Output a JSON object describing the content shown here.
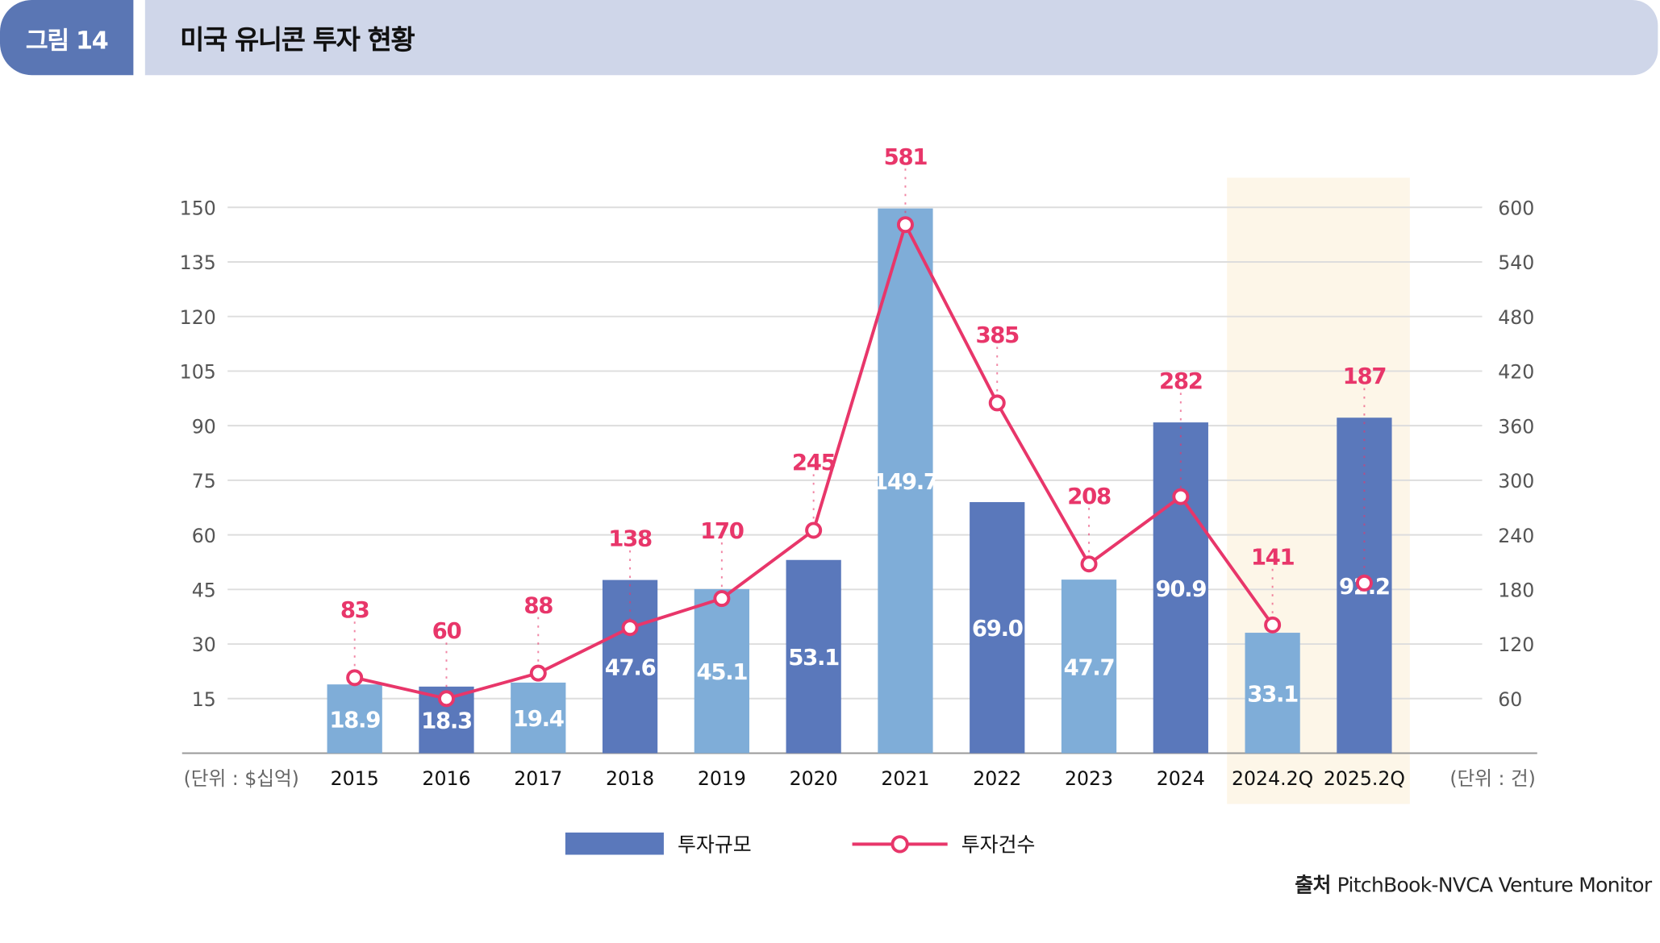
{
  "header": {
    "figure_label": "그림 14",
    "title": "미국 유니콘 투자 현황"
  },
  "source": {
    "label": "출처",
    "text": "PitchBook-NVCA Venture Monitor"
  },
  "colors": {
    "bar_light": "#7fadd8",
    "bar_dark": "#5a78bb",
    "line": "#e8366a",
    "highlight": "#fdf6e8",
    "grid": "#dddddd"
  },
  "chart_data": {
    "type": "bar+line",
    "title": "미국 유니콘 투자 현황",
    "categories": [
      "2015",
      "2016",
      "2017",
      "2018",
      "2019",
      "2020",
      "2021",
      "2022",
      "2023",
      "2024",
      "2024.2Q",
      "2025.2Q"
    ],
    "series": [
      {
        "name": "투자규모",
        "type": "bar",
        "axis": "left",
        "values": [
          18.9,
          18.3,
          19.4,
          47.6,
          45.1,
          53.1,
          149.7,
          69.0,
          47.7,
          90.9,
          33.1,
          92.2
        ],
        "value_labels": [
          "18.9",
          "18.3",
          "19.4",
          "47.6",
          "45.1",
          "53.1",
          "149.7",
          "69.0",
          "47.7",
          "90.9",
          "33.1",
          "92.2"
        ]
      },
      {
        "name": "투자건수",
        "type": "line",
        "axis": "right",
        "values": [
          83,
          60,
          88,
          138,
          170,
          245,
          581,
          385,
          208,
          282,
          141,
          187
        ]
      }
    ],
    "left_axis": {
      "unit_label": "(단위 : $십억)",
      "ticks": [
        15,
        30,
        45,
        60,
        75,
        90,
        105,
        120,
        135,
        150
      ],
      "ylim": [
        0,
        150
      ]
    },
    "right_axis": {
      "unit_label": "(단위 : 건)",
      "ticks": [
        60,
        120,
        180,
        240,
        300,
        360,
        420,
        480,
        540,
        600
      ],
      "ylim": [
        0,
        600
      ]
    },
    "highlighted_categories": [
      "2024.2Q",
      "2025.2Q"
    ],
    "grid": true,
    "legend": {
      "placement": "bottom-center",
      "entries": [
        "투자규모",
        "투자건수"
      ]
    }
  }
}
